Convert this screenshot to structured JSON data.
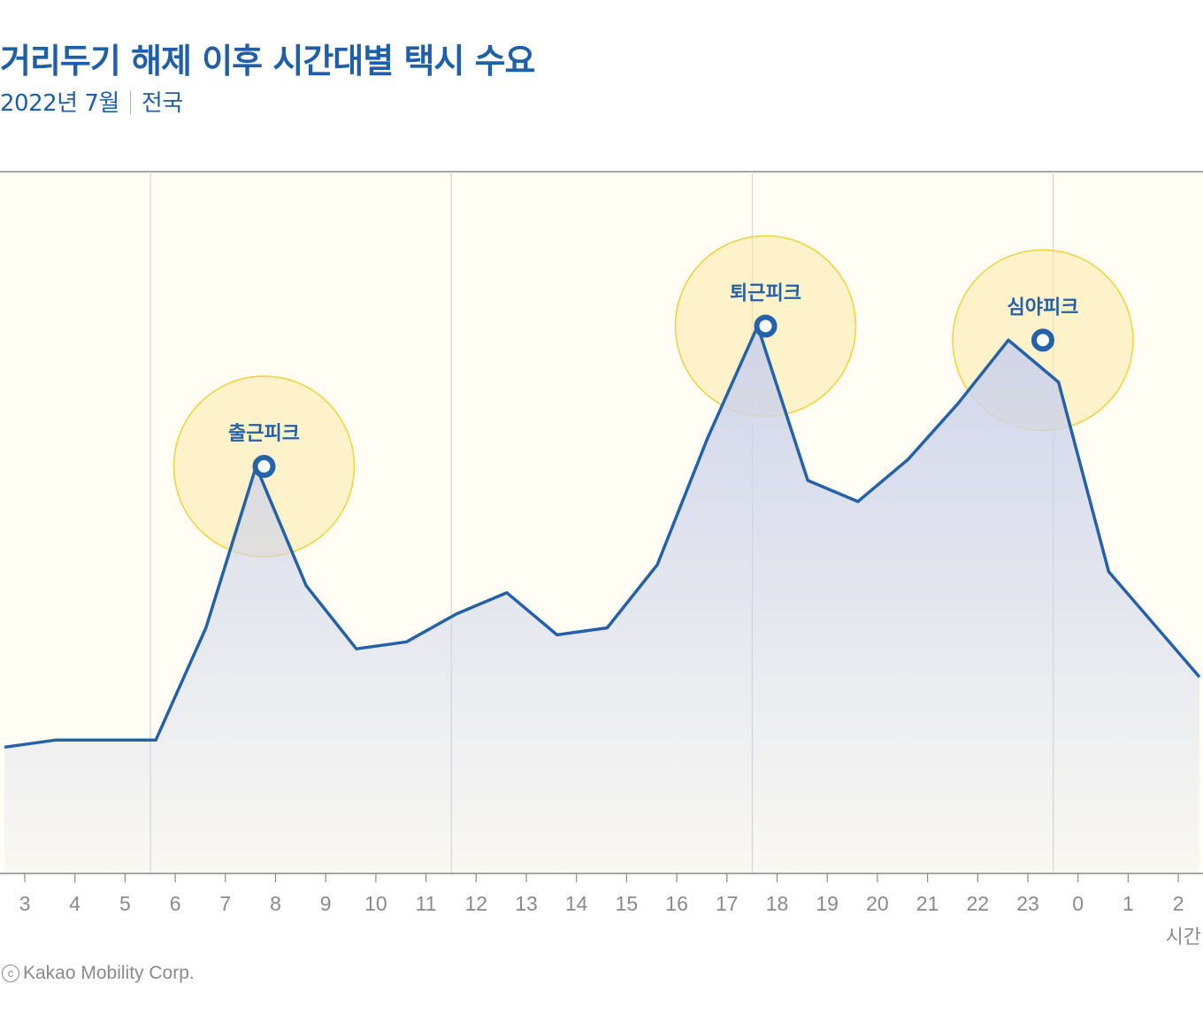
{
  "header": {
    "title": "거리두기 해제 이후 시간대별 택시 수요",
    "subtitle_date": "2022년 7월",
    "subtitle_region": "전국"
  },
  "footer": {
    "copyright_symbol": "c",
    "credit": "Kakao Mobility Corp."
  },
  "colors": {
    "line": "#2461a8",
    "area_top": "#cdd3ea",
    "plot_bg": "#fffdf4",
    "highlight_fill": "#fbe9a8",
    "highlight_stroke": "#f3d23a",
    "axis_text": "#8a8a8a"
  },
  "chart_data": {
    "type": "area",
    "x": [
      "3",
      "4",
      "5",
      "6",
      "7",
      "8",
      "9",
      "10",
      "11",
      "12",
      "13",
      "14",
      "15",
      "16",
      "17",
      "18",
      "19",
      "20",
      "21",
      "22",
      "23",
      "0",
      "1",
      "2"
    ],
    "xlabel": "시간",
    "ylabel": "",
    "ylim": [
      0,
      100
    ],
    "grid_x_at": [
      "6",
      "12",
      "18",
      "0"
    ],
    "series": [
      {
        "values": [
          18,
          19,
          19,
          19,
          35,
          58,
          41,
          32,
          33,
          37,
          40,
          34,
          35,
          44,
          62,
          78,
          56,
          53,
          59,
          67,
          76,
          70,
          43,
          28
        ]
      }
    ],
    "annotations": [
      {
        "label": "출근피크",
        "x": "8",
        "value": 58
      },
      {
        "label": "퇴근피크",
        "x": "18",
        "value": 78
      },
      {
        "label": "심야피크",
        "x": "23",
        "value": 76
      }
    ]
  }
}
